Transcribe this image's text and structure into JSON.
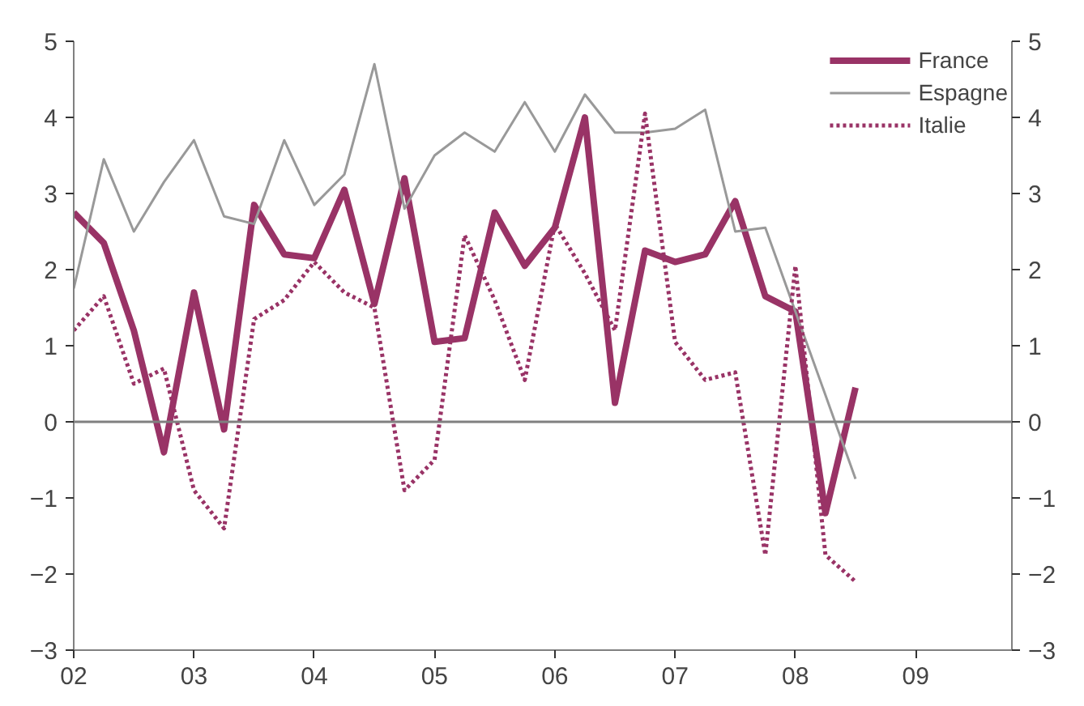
{
  "chart_data": {
    "type": "line",
    "x": [
      2002.0,
      2002.25,
      2002.5,
      2002.75,
      2003.0,
      2003.25,
      2003.5,
      2003.75,
      2004.0,
      2004.25,
      2004.5,
      2004.75,
      2005.0,
      2005.25,
      2005.5,
      2005.75,
      2006.0,
      2006.25,
      2006.5,
      2006.75,
      2007.0,
      2007.25,
      2007.5,
      2007.75,
      2008.0,
      2008.25,
      2008.5
    ],
    "series": [
      {
        "name": "France",
        "color": "#993366",
        "line_style": "solid",
        "values": [
          2.75,
          2.35,
          1.2,
          -0.4,
          1.7,
          -0.1,
          2.85,
          2.2,
          2.15,
          3.05,
          1.55,
          3.2,
          1.05,
          1.1,
          2.75,
          2.05,
          2.55,
          4.0,
          0.25,
          2.25,
          2.1,
          2.2,
          2.9,
          1.65,
          1.45,
          -1.2,
          0.45
        ]
      },
      {
        "name": "Espagne",
        "color": "#999999",
        "line_style": "solid",
        "values": [
          1.75,
          3.45,
          2.5,
          3.15,
          3.7,
          2.7,
          2.6,
          3.7,
          2.85,
          3.25,
          4.7,
          2.8,
          3.5,
          3.8,
          3.55,
          4.2,
          3.55,
          4.3,
          3.8,
          3.8,
          3.85,
          4.1,
          2.5,
          2.55,
          1.45,
          0.35,
          -0.75
        ]
      },
      {
        "name": "Italie",
        "color": "#993366",
        "line_style": "dotted",
        "values": [
          1.2,
          1.65,
          0.5,
          0.7,
          -0.9,
          -1.4,
          1.35,
          1.6,
          2.1,
          1.7,
          1.5,
          -0.9,
          -0.5,
          2.45,
          1.6,
          0.55,
          2.6,
          1.95,
          1.2,
          4.05,
          1.05,
          0.55,
          0.65,
          -1.75,
          2.05,
          -1.75,
          -2.1
        ]
      }
    ],
    "xlim": [
      2002,
      2009.8
    ],
    "xticks": [
      {
        "value": 2002,
        "label": "02"
      },
      {
        "value": 2003,
        "label": "03"
      },
      {
        "value": 2004,
        "label": "04"
      },
      {
        "value": 2005,
        "label": "05"
      },
      {
        "value": 2006,
        "label": "06"
      },
      {
        "value": 2007,
        "label": "07"
      },
      {
        "value": 2008,
        "label": "08"
      },
      {
        "value": 2009,
        "label": "09"
      }
    ],
    "ylim": [
      -3,
      5
    ],
    "yticks": [
      -3,
      -2,
      -1,
      0,
      1,
      2,
      3,
      4,
      5
    ],
    "y2lim": [
      -3,
      5
    ],
    "y2ticks": [
      -3,
      -2,
      -1,
      0,
      1,
      2,
      3,
      4,
      5
    ],
    "ref_lines": [
      {
        "axis": "y",
        "value": 0,
        "color": "#808080"
      }
    ],
    "grid": false,
    "legend": "top right"
  }
}
